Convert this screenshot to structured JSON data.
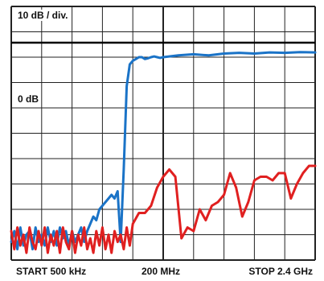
{
  "chart_data": {
    "type": "line",
    "scale_label": "10 dB / div.",
    "reference_label": "0 dB",
    "x_tick_labels": {
      "start": "START 500 kHz",
      "mid": "200 MHz",
      "stop": "STOP 2.4 GHz"
    },
    "x_unit": "division",
    "y_unit": "dB",
    "xlim": [
      0,
      10
    ],
    "ylim": [
      -60,
      10
    ],
    "grid": true,
    "grid_divisions": {
      "x": 10,
      "y": 10
    },
    "reference_line_db": 0,
    "x_axis_scale": "log",
    "series": [
      {
        "color": "#1a73c7",
        "x": [
          0,
          0.1,
          0.2,
          0.3,
          0.4,
          0.5,
          0.6,
          0.7,
          0.8,
          0.9,
          1.0,
          1.1,
          1.2,
          1.3,
          1.4,
          1.5,
          1.6,
          1.7,
          1.8,
          1.9,
          2.0,
          2.1,
          2.2,
          2.3,
          2.4,
          2.5,
          2.6,
          2.7,
          2.8,
          2.9,
          3.0,
          3.1,
          3.2,
          3.3,
          3.4,
          3.5,
          3.6,
          3.7,
          3.8,
          3.9,
          4.0,
          4.1,
          4.2,
          4.3,
          4.4,
          4.5,
          4.6,
          4.7,
          4.8,
          4.9,
          5.0,
          5.5,
          6.0,
          6.5,
          7.0,
          7.5,
          8.0,
          8.5,
          9.0,
          9.5,
          10.0
        ],
        "y": [
          -55,
          -52,
          -57,
          -51,
          -56,
          -53,
          -52,
          -57,
          -51,
          -55,
          -53,
          -56,
          -51,
          -55,
          -52,
          -56,
          -51,
          -54,
          -52,
          -56,
          -52,
          -55,
          -53,
          -51,
          -55,
          -52,
          -50,
          -48,
          -49,
          -46,
          -45,
          -44,
          -43,
          -42,
          -43,
          -41,
          -55,
          -35,
          -12,
          -6,
          -5,
          -4.5,
          -4,
          -4,
          -4.5,
          -4.3,
          -4,
          -3.8,
          -4,
          -4.2,
          -4,
          -3.5,
          -3.2,
          -3.5,
          -3,
          -2.8,
          -3,
          -2.7,
          -2.8,
          -2.6,
          -2.7
        ]
      },
      {
        "color": "#e02020",
        "x": [
          0,
          0.1,
          0.2,
          0.3,
          0.4,
          0.5,
          0.6,
          0.7,
          0.8,
          0.9,
          1.0,
          1.1,
          1.2,
          1.3,
          1.4,
          1.5,
          1.6,
          1.7,
          1.8,
          1.9,
          2.0,
          2.1,
          2.2,
          2.3,
          2.4,
          2.5,
          2.6,
          2.7,
          2.8,
          2.9,
          3.0,
          3.1,
          3.2,
          3.3,
          3.4,
          3.5,
          3.6,
          3.7,
          3.8,
          3.9,
          4.0,
          4.2,
          4.4,
          4.6,
          4.8,
          5.0,
          5.2,
          5.4,
          5.6,
          5.8,
          6.0,
          6.2,
          6.4,
          6.6,
          6.8,
          7.0,
          7.2,
          7.4,
          7.6,
          7.8,
          8.0,
          8.2,
          8.4,
          8.6,
          8.8,
          9.0,
          9.2,
          9.4,
          9.6,
          9.8,
          10.0
        ],
        "y": [
          -52,
          -57,
          -51,
          -56,
          -53,
          -58,
          -51,
          -55,
          -57,
          -52,
          -56,
          -51,
          -58,
          -53,
          -56,
          -52,
          -58,
          -51,
          -55,
          -57,
          -52,
          -58,
          -53,
          -56,
          -51,
          -57,
          -54,
          -58,
          -52,
          -56,
          -51,
          -57,
          -53,
          -58,
          -52,
          -55,
          -53,
          -57,
          -51,
          -56,
          -50,
          -47,
          -47,
          -45,
          -40,
          -37,
          -35,
          -37,
          -54,
          -51,
          -52,
          -46,
          -49,
          -45,
          -44,
          -42,
          -36,
          -40,
          -48,
          -44,
          -38,
          -37,
          -37,
          -38,
          -36,
          -36,
          -43,
          -39,
          -36,
          -34,
          -34
        ]
      }
    ]
  }
}
